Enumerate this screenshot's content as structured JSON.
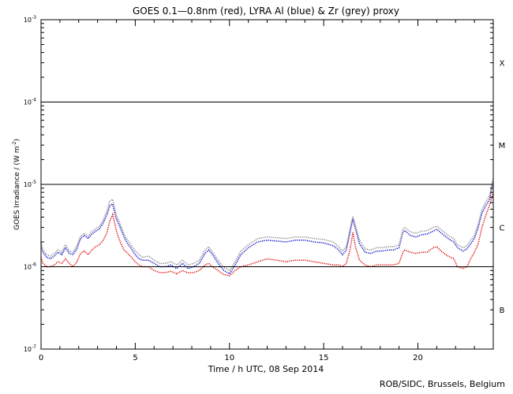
{
  "chart_data": {
    "type": "line",
    "title": "GOES 0.1—0.8nm (red), LYRA Al (blue) & Zr (grey) proxy",
    "xlabel": "Time / h UTC, 08 Sep 2014",
    "ylabel": "GOES Irradiance / (W m",
    "ylabel_exp": "-2",
    "ylabel_close": ")",
    "xlim": [
      0,
      24
    ],
    "ylim": [
      1e-07,
      0.001
    ],
    "yscale": "log",
    "grid": "horizontal lines at flare-class boundaries",
    "xticks": [
      0,
      5,
      10,
      15,
      20
    ],
    "xtick_labels": [
      "0",
      "5",
      "10",
      "15",
      "20"
    ],
    "yticks": [
      {
        "mant": "10",
        "exp": "-3",
        "v": 0.001
      },
      {
        "mant": "10",
        "exp": "-4",
        "v": 0.0001
      },
      {
        "mant": "10",
        "exp": "-5",
        "v": 1e-05
      },
      {
        "mant": "10",
        "exp": "-6",
        "v": 1e-06
      },
      {
        "mant": "10",
        "exp": "-7",
        "v": 1e-07
      }
    ],
    "class_lines": [
      0.0001,
      1e-05,
      1e-06
    ],
    "class_labels": [
      {
        "label": "X",
        "v": 0.0003
      },
      {
        "label": "M",
        "v": 3e-05
      },
      {
        "label": "C",
        "v": 3e-06
      },
      {
        "label": "B",
        "v": 3e-07
      }
    ],
    "series": [
      {
        "color": "#dd0000",
        "points": [
          [
            0.0,
            1.3e-06
          ],
          [
            0.1,
            1.1e-06
          ],
          [
            0.3,
            1e-06
          ],
          [
            0.5,
            1e-06
          ],
          [
            0.7,
            1.05e-06
          ],
          [
            0.9,
            1.15e-06
          ],
          [
            1.1,
            1.1e-06
          ],
          [
            1.3,
            1.25e-06
          ],
          [
            1.5,
            1.1e-06
          ],
          [
            1.7,
            1e-06
          ],
          [
            1.9,
            1.15e-06
          ],
          [
            2.1,
            1.45e-06
          ],
          [
            2.3,
            1.55e-06
          ],
          [
            2.5,
            1.4e-06
          ],
          [
            2.7,
            1.6e-06
          ],
          [
            2.9,
            1.75e-06
          ],
          [
            3.1,
            1.85e-06
          ],
          [
            3.3,
            2.1e-06
          ],
          [
            3.5,
            2.6e-06
          ],
          [
            3.65,
            3.6e-06
          ],
          [
            3.8,
            4.3e-06
          ],
          [
            3.9,
            3.5e-06
          ],
          [
            4.0,
            2.7e-06
          ],
          [
            4.2,
            2e-06
          ],
          [
            4.4,
            1.6e-06
          ],
          [
            4.6,
            1.45e-06
          ],
          [
            4.8,
            1.3e-06
          ],
          [
            5.0,
            1.15e-06
          ],
          [
            5.2,
            1.05e-06
          ],
          [
            5.4,
            1e-06
          ],
          [
            5.7,
            1e-06
          ],
          [
            6.0,
            9e-07
          ],
          [
            6.3,
            8.5e-07
          ],
          [
            6.6,
            8.5e-07
          ],
          [
            6.9,
            8.8e-07
          ],
          [
            7.2,
            8.2e-07
          ],
          [
            7.5,
            9e-07
          ],
          [
            7.8,
            8.4e-07
          ],
          [
            8.1,
            8.5e-07
          ],
          [
            8.4,
            9e-07
          ],
          [
            8.7,
            1.05e-06
          ],
          [
            8.9,
            1.1e-06
          ],
          [
            9.1,
            1e-06
          ],
          [
            9.4,
            9e-07
          ],
          [
            9.7,
            8e-07
          ],
          [
            10.0,
            7.8e-07
          ],
          [
            10.3,
            9e-07
          ],
          [
            10.6,
            1e-06
          ],
          [
            11.0,
            1.05e-06
          ],
          [
            11.5,
            1.15e-06
          ],
          [
            12.0,
            1.25e-06
          ],
          [
            12.5,
            1.2e-06
          ],
          [
            13.0,
            1.15e-06
          ],
          [
            13.5,
            1.2e-06
          ],
          [
            14.0,
            1.2e-06
          ],
          [
            14.5,
            1.15e-06
          ],
          [
            15.0,
            1.1e-06
          ],
          [
            15.5,
            1.05e-06
          ],
          [
            15.8,
            1.05e-06
          ],
          [
            16.0,
            1e-06
          ],
          [
            16.2,
            1.1e-06
          ],
          [
            16.4,
            1.6e-06
          ],
          [
            16.55,
            2.6e-06
          ],
          [
            16.7,
            1.7e-06
          ],
          [
            16.9,
            1.2e-06
          ],
          [
            17.2,
            1.05e-06
          ],
          [
            17.5,
            1e-06
          ],
          [
            17.8,
            1.05e-06
          ],
          [
            18.1,
            1.05e-06
          ],
          [
            18.4,
            1.05e-06
          ],
          [
            18.7,
            1.05e-06
          ],
          [
            19.0,
            1.1e-06
          ],
          [
            19.2,
            1.5e-06
          ],
          [
            19.3,
            1.6e-06
          ],
          [
            19.6,
            1.5e-06
          ],
          [
            19.9,
            1.45e-06
          ],
          [
            20.2,
            1.5e-06
          ],
          [
            20.5,
            1.5e-06
          ],
          [
            20.8,
            1.7e-06
          ],
          [
            21.0,
            1.75e-06
          ],
          [
            21.3,
            1.5e-06
          ],
          [
            21.6,
            1.35e-06
          ],
          [
            21.9,
            1.25e-06
          ],
          [
            22.1,
            1e-06
          ],
          [
            22.4,
            9.5e-07
          ],
          [
            22.6,
            1e-06
          ],
          [
            22.8,
            1.25e-06
          ],
          [
            23.0,
            1.5e-06
          ],
          [
            23.2,
            1.9e-06
          ],
          [
            23.4,
            3e-06
          ],
          [
            23.6,
            4.2e-06
          ],
          [
            23.8,
            5.5e-06
          ],
          [
            24.0,
            8e-06
          ]
        ]
      },
      {
        "color": "#0000cc",
        "points": [
          [
            0.0,
            1.9e-06
          ],
          [
            0.1,
            1.5e-06
          ],
          [
            0.3,
            1.3e-06
          ],
          [
            0.5,
            1.25e-06
          ],
          [
            0.7,
            1.35e-06
          ],
          [
            0.9,
            1.5e-06
          ],
          [
            1.1,
            1.4e-06
          ],
          [
            1.3,
            1.7e-06
          ],
          [
            1.5,
            1.45e-06
          ],
          [
            1.7,
            1.4e-06
          ],
          [
            1.9,
            1.65e-06
          ],
          [
            2.1,
            2.2e-06
          ],
          [
            2.3,
            2.4e-06
          ],
          [
            2.5,
            2.2e-06
          ],
          [
            2.7,
            2.5e-06
          ],
          [
            2.9,
            2.7e-06
          ],
          [
            3.1,
            2.9e-06
          ],
          [
            3.3,
            3.4e-06
          ],
          [
            3.5,
            4.3e-06
          ],
          [
            3.65,
            5.5e-06
          ],
          [
            3.8,
            5.8e-06
          ],
          [
            3.9,
            4.6e-06
          ],
          [
            4.0,
            3.8e-06
          ],
          [
            4.2,
            3e-06
          ],
          [
            4.4,
            2.3e-06
          ],
          [
            4.6,
            1.9e-06
          ],
          [
            4.8,
            1.65e-06
          ],
          [
            5.0,
            1.4e-06
          ],
          [
            5.2,
            1.25e-06
          ],
          [
            5.4,
            1.2e-06
          ],
          [
            5.7,
            1.2e-06
          ],
          [
            6.0,
            1.1e-06
          ],
          [
            6.3,
            1e-06
          ],
          [
            6.6,
            1e-06
          ],
          [
            6.9,
            1.05e-06
          ],
          [
            7.2,
            9.5e-07
          ],
          [
            7.5,
            1.1e-06
          ],
          [
            7.8,
            9.5e-07
          ],
          [
            8.1,
            1e-06
          ],
          [
            8.4,
            1.1e-06
          ],
          [
            8.7,
            1.45e-06
          ],
          [
            8.9,
            1.6e-06
          ],
          [
            9.1,
            1.4e-06
          ],
          [
            9.4,
            1.1e-06
          ],
          [
            9.7,
            9e-07
          ],
          [
            10.0,
            8.2e-07
          ],
          [
            10.3,
            1.05e-06
          ],
          [
            10.6,
            1.4e-06
          ],
          [
            11.0,
            1.7e-06
          ],
          [
            11.5,
            2e-06
          ],
          [
            12.0,
            2.1e-06
          ],
          [
            12.5,
            2.05e-06
          ],
          [
            13.0,
            2e-06
          ],
          [
            13.5,
            2.1e-06
          ],
          [
            14.0,
            2.1e-06
          ],
          [
            14.5,
            2e-06
          ],
          [
            15.0,
            1.95e-06
          ],
          [
            15.5,
            1.8e-06
          ],
          [
            15.8,
            1.6e-06
          ],
          [
            16.0,
            1.4e-06
          ],
          [
            16.2,
            1.6e-06
          ],
          [
            16.4,
            2.6e-06
          ],
          [
            16.55,
            3.8e-06
          ],
          [
            16.7,
            2.8e-06
          ],
          [
            16.9,
            1.9e-06
          ],
          [
            17.2,
            1.5e-06
          ],
          [
            17.5,
            1.45e-06
          ],
          [
            17.8,
            1.55e-06
          ],
          [
            18.1,
            1.55e-06
          ],
          [
            18.4,
            1.6e-06
          ],
          [
            18.7,
            1.6e-06
          ],
          [
            19.0,
            1.7e-06
          ],
          [
            19.2,
            2.6e-06
          ],
          [
            19.3,
            2.75e-06
          ],
          [
            19.6,
            2.4e-06
          ],
          [
            19.9,
            2.3e-06
          ],
          [
            20.2,
            2.45e-06
          ],
          [
            20.5,
            2.5e-06
          ],
          [
            20.8,
            2.7e-06
          ],
          [
            21.0,
            2.85e-06
          ],
          [
            21.3,
            2.5e-06
          ],
          [
            21.6,
            2.2e-06
          ],
          [
            21.9,
            2e-06
          ],
          [
            22.1,
            1.7e-06
          ],
          [
            22.4,
            1.55e-06
          ],
          [
            22.6,
            1.65e-06
          ],
          [
            22.8,
            1.9e-06
          ],
          [
            23.0,
            2.2e-06
          ],
          [
            23.2,
            3e-06
          ],
          [
            23.4,
            4.5e-06
          ],
          [
            23.6,
            5.5e-06
          ],
          [
            23.8,
            6.5e-06
          ],
          [
            24.0,
            1.1e-05
          ]
        ]
      },
      {
        "color": "#888888",
        "points": [
          [
            0.0,
            2e-06
          ],
          [
            0.1,
            1.6e-06
          ],
          [
            0.3,
            1.4e-06
          ],
          [
            0.5,
            1.35e-06
          ],
          [
            0.7,
            1.45e-06
          ],
          [
            0.9,
            1.6e-06
          ],
          [
            1.1,
            1.5e-06
          ],
          [
            1.3,
            1.85e-06
          ],
          [
            1.5,
            1.55e-06
          ],
          [
            1.7,
            1.5e-06
          ],
          [
            1.9,
            1.8e-06
          ],
          [
            2.1,
            2.35e-06
          ],
          [
            2.3,
            2.55e-06
          ],
          [
            2.5,
            2.35e-06
          ],
          [
            2.7,
            2.7e-06
          ],
          [
            2.9,
            2.9e-06
          ],
          [
            3.1,
            3.1e-06
          ],
          [
            3.3,
            3.7e-06
          ],
          [
            3.5,
            4.8e-06
          ],
          [
            3.65,
            6.3e-06
          ],
          [
            3.8,
            6.6e-06
          ],
          [
            3.9,
            5.2e-06
          ],
          [
            4.0,
            4.2e-06
          ],
          [
            4.2,
            3.3e-06
          ],
          [
            4.4,
            2.5e-06
          ],
          [
            4.6,
            2.1e-06
          ],
          [
            4.8,
            1.8e-06
          ],
          [
            5.0,
            1.55e-06
          ],
          [
            5.2,
            1.4e-06
          ],
          [
            5.4,
            1.3e-06
          ],
          [
            5.7,
            1.35e-06
          ],
          [
            6.0,
            1.2e-06
          ],
          [
            6.3,
            1.1e-06
          ],
          [
            6.6,
            1.1e-06
          ],
          [
            6.9,
            1.15e-06
          ],
          [
            7.2,
            1.05e-06
          ],
          [
            7.5,
            1.2e-06
          ],
          [
            7.8,
            1.05e-06
          ],
          [
            8.1,
            1.1e-06
          ],
          [
            8.4,
            1.2e-06
          ],
          [
            8.7,
            1.6e-06
          ],
          [
            8.9,
            1.75e-06
          ],
          [
            9.1,
            1.5e-06
          ],
          [
            9.4,
            1.2e-06
          ],
          [
            9.7,
            9.8e-07
          ],
          [
            10.0,
            9e-07
          ],
          [
            10.3,
            1.15e-06
          ],
          [
            10.6,
            1.55e-06
          ],
          [
            11.0,
            1.85e-06
          ],
          [
            11.5,
            2.2e-06
          ],
          [
            12.0,
            2.3e-06
          ],
          [
            12.5,
            2.25e-06
          ],
          [
            13.0,
            2.2e-06
          ],
          [
            13.5,
            2.3e-06
          ],
          [
            14.0,
            2.3e-06
          ],
          [
            14.5,
            2.2e-06
          ],
          [
            15.0,
            2.15e-06
          ],
          [
            15.5,
            2e-06
          ],
          [
            15.8,
            1.75e-06
          ],
          [
            16.0,
            1.55e-06
          ],
          [
            16.2,
            1.75e-06
          ],
          [
            16.4,
            2.85e-06
          ],
          [
            16.55,
            4.1e-06
          ],
          [
            16.7,
            3.1e-06
          ],
          [
            16.9,
            2.1e-06
          ],
          [
            17.2,
            1.65e-06
          ],
          [
            17.5,
            1.6e-06
          ],
          [
            17.8,
            1.7e-06
          ],
          [
            18.1,
            1.7e-06
          ],
          [
            18.4,
            1.75e-06
          ],
          [
            18.7,
            1.75e-06
          ],
          [
            19.0,
            1.85e-06
          ],
          [
            19.2,
            2.85e-06
          ],
          [
            19.3,
            3e-06
          ],
          [
            19.6,
            2.65e-06
          ],
          [
            19.9,
            2.55e-06
          ],
          [
            20.2,
            2.7e-06
          ],
          [
            20.5,
            2.75e-06
          ],
          [
            20.8,
            3e-06
          ],
          [
            21.0,
            3.1e-06
          ],
          [
            21.3,
            2.75e-06
          ],
          [
            21.6,
            2.4e-06
          ],
          [
            21.9,
            2.2e-06
          ],
          [
            22.1,
            1.85e-06
          ],
          [
            22.4,
            1.7e-06
          ],
          [
            22.6,
            1.8e-06
          ],
          [
            22.8,
            2.1e-06
          ],
          [
            23.0,
            2.4e-06
          ],
          [
            23.2,
            3.3e-06
          ],
          [
            23.4,
            5e-06
          ],
          [
            23.6,
            6.1e-06
          ],
          [
            23.8,
            7.2e-06
          ],
          [
            24.0,
            1.2e-05
          ]
        ]
      }
    ]
  },
  "credit": "ROB/SIDC, Brussels, Belgium"
}
